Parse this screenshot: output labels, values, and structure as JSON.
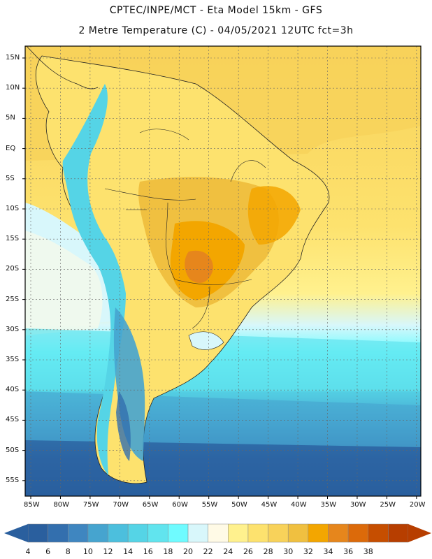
{
  "header": {
    "line1": "CPTEC/INPE/MCT -   Eta Model 15km - GFS",
    "line2": "2 Metre Temperature (C) - 04/05/2021 12UTC fct=3h"
  },
  "map": {
    "lat_labels": [
      "15N",
      "10N",
      "5N",
      "EQ",
      "5S",
      "10S",
      "15S",
      "20S",
      "25S",
      "30S",
      "35S",
      "40S",
      "45S",
      "50S",
      "55S"
    ],
    "lon_labels": [
      "85W",
      "80W",
      "75W",
      "70W",
      "65W",
      "60W",
      "55W",
      "50W",
      "45W",
      "40W",
      "35W",
      "30W",
      "25W",
      "20W"
    ]
  },
  "colorbar": {
    "labels": [
      "4",
      "6",
      "8",
      "10",
      "12",
      "14",
      "16",
      "18",
      "20",
      "22",
      "24",
      "26",
      "28",
      "30",
      "32",
      "34",
      "36",
      "38"
    ],
    "colors": [
      "#2a5f9e",
      "#336fae",
      "#3f86c0",
      "#46a4cf",
      "#4cbfdd",
      "#55d4e6",
      "#61e4ee",
      "#6ffbff",
      "#d8f7fb",
      "#fffae6",
      "#fff18e",
      "#fde26e",
      "#f8d25a",
      "#f0c040",
      "#f3a600",
      "#e6861c",
      "#dc6a0a",
      "#c64e00",
      "#b73e00"
    ],
    "left_arrow_color": "#2a5f9e",
    "right_arrow_color": "#b73e00"
  }
}
